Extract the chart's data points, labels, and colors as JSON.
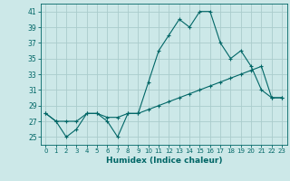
{
  "xlabel": "Humidex (Indice chaleur)",
  "background_color": "#cce8e8",
  "grid_color": "#aacccc",
  "line_color": "#006666",
  "xlim": [
    -0.5,
    23.5
  ],
  "ylim": [
    24,
    42
  ],
  "yticks": [
    25,
    27,
    29,
    31,
    33,
    35,
    37,
    39,
    41
  ],
  "xticks": [
    0,
    1,
    2,
    3,
    4,
    5,
    6,
    7,
    8,
    9,
    10,
    11,
    12,
    13,
    14,
    15,
    16,
    17,
    18,
    19,
    20,
    21,
    22,
    23
  ],
  "line1_x": [
    0,
    1,
    2,
    3,
    4,
    5,
    6,
    7,
    8,
    9,
    10,
    11,
    12,
    13,
    14,
    15,
    16,
    17,
    18,
    19,
    20,
    21,
    22,
    23
  ],
  "line1_y": [
    28,
    27,
    25,
    26,
    28,
    28,
    27,
    25,
    28,
    28,
    32,
    36,
    38,
    40,
    39,
    41,
    41,
    37,
    35,
    36,
    34,
    31,
    30,
    30
  ],
  "line2_x": [
    0,
    1,
    2,
    3,
    4,
    5,
    6,
    7,
    8,
    9,
    10,
    11,
    12,
    13,
    14,
    15,
    16,
    17,
    18,
    19,
    20,
    21,
    22,
    23
  ],
  "line2_y": [
    28,
    27,
    27,
    27,
    28,
    28,
    27.5,
    27.5,
    28,
    28,
    28.5,
    29,
    29.5,
    30,
    30.5,
    31,
    31.5,
    32,
    32.5,
    33,
    33.5,
    34,
    30,
    30
  ],
  "marker": "+"
}
